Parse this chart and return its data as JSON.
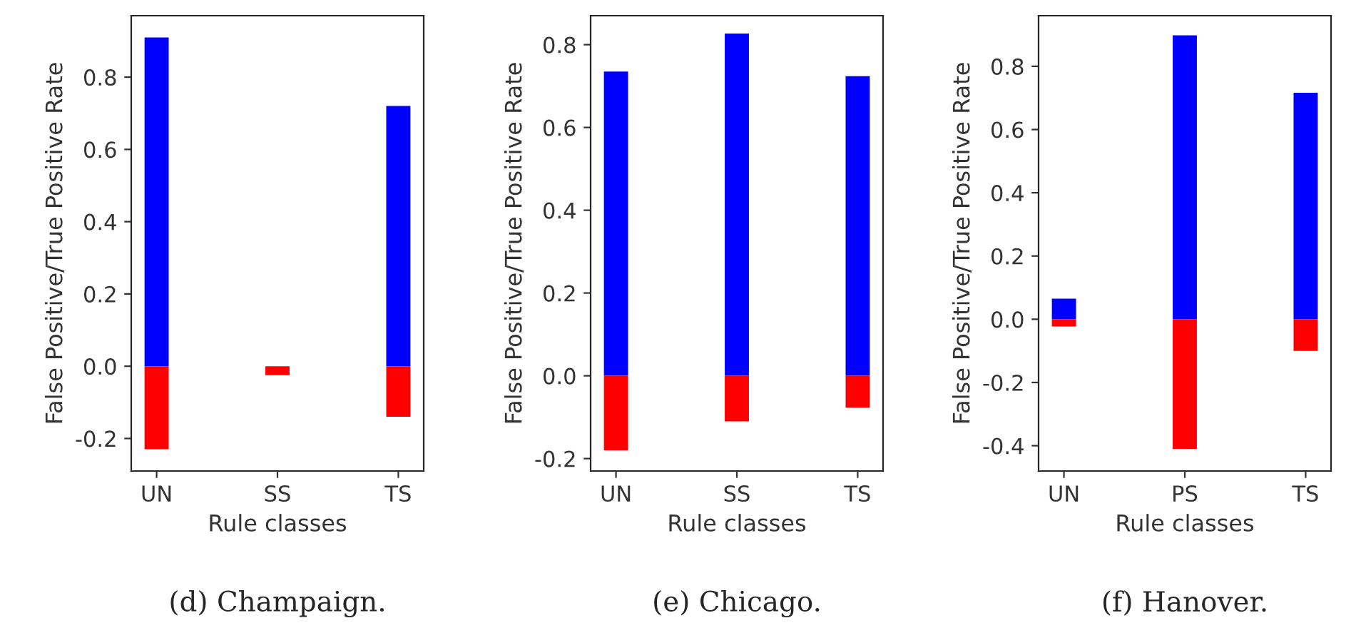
{
  "chart_data": [
    {
      "type": "bar",
      "stacked": true,
      "categories": [
        "UN",
        "SS",
        "TS"
      ],
      "xlabel": "Rule classes",
      "ylabel": "False Positive/True Positive Rate",
      "ylim": [
        -0.29,
        0.97
      ],
      "yticks": [
        {
          "value": -0.2,
          "label": "-0.2"
        },
        {
          "value": 0,
          "label": "0.0"
        },
        0.2,
        0.4,
        0.6,
        0.8
      ],
      "annotations": [
        "(d) Champaign."
      ],
      "series": [
        {
          "color": "#0000ff",
          "values": [
            0.91,
            null,
            0.72
          ]
        },
        {
          "color": "#ff0000",
          "values": [
            -0.23,
            -0.025,
            -0.14
          ]
        }
      ]
    },
    {
      "type": "bar",
      "stacked": true,
      "categories": [
        "UN",
        "SS",
        "TS"
      ],
      "xlabel": "Rule classes",
      "ylabel": "False Positive/True Positive Rate",
      "ylim": [
        -0.23,
        0.87
      ],
      "yticks": [
        {
          "value": -0.2,
          "label": "-0.2"
        },
        {
          "value": 0,
          "label": "0.0"
        },
        0.2,
        0.4,
        0.6,
        0.8
      ],
      "annotations": [
        "(e) Chicago."
      ],
      "series": [
        {
          "color": "#0000ff",
          "values": [
            0.735,
            0.827,
            0.724
          ]
        },
        {
          "color": "#ff0000",
          "values": [
            -0.18,
            -0.11,
            -0.077
          ]
        }
      ]
    },
    {
      "type": "bar",
      "stacked": true,
      "categories": [
        "UN",
        "PS",
        "TS"
      ],
      "xlabel": "Rule classes",
      "ylabel": "False Positive/True Positive Rate",
      "ylim": [
        -0.48,
        0.96
      ],
      "yticks": [
        {
          "value": -0.4,
          "label": "-0.4"
        },
        {
          "value": -0.2,
          "label": "-0.2"
        },
        {
          "value": 0,
          "label": "0.0"
        },
        0.2,
        0.4,
        0.6,
        0.8
      ],
      "annotations": [
        "(f) Hanover."
      ],
      "series": [
        {
          "color": "#0000ff",
          "values": [
            0.065,
            0.898,
            0.716
          ]
        },
        {
          "color": "#ff0000",
          "values": [
            -0.023,
            -0.41,
            -0.1
          ]
        }
      ]
    }
  ]
}
